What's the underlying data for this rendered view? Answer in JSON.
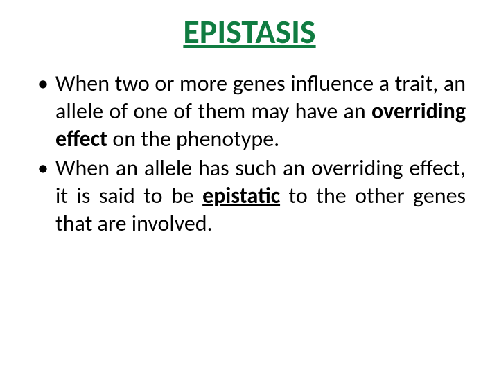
{
  "slide": {
    "title": "EPISTASIS",
    "title_color": "#107c41",
    "body_color": "#000000",
    "background_color": "#ffffff",
    "title_fontsize": 48,
    "body_fontsize": 32,
    "bullets": [
      {
        "pre": "When two or more genes influence a trait, an allele of one of them may have an ",
        "emph": "overriding effect",
        "emph_style": "bold",
        "post": " on the phenotype."
      },
      {
        "pre": "When an allele has such an overriding effect, it is said to be ",
        "emph": "epistatic",
        "emph_style": "bold-underline",
        "post": " to the other genes that are involved."
      }
    ]
  }
}
